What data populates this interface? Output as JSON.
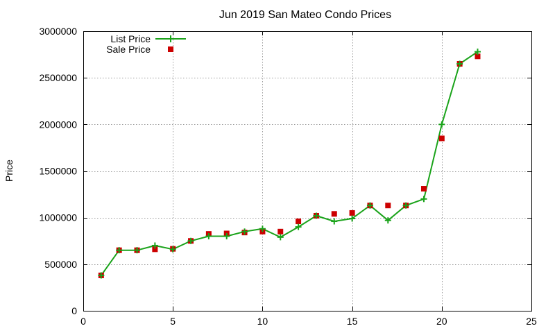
{
  "chart_data": {
    "type": "line",
    "title": "Jun 2019 San Mateo Condo Prices",
    "xlabel": "",
    "ylabel": "Price",
    "xlim": [
      0,
      25
    ],
    "ylim": [
      0,
      3000000
    ],
    "xticks": [
      0,
      5,
      10,
      15,
      20,
      25
    ],
    "yticks": [
      0,
      500000,
      1000000,
      1500000,
      2000000,
      2500000,
      3000000
    ],
    "xtick_labels": [
      "0",
      "5",
      "10",
      "15",
      "20",
      "25"
    ],
    "ytick_labels": [
      "0",
      "500000",
      "1000000",
      "1500000",
      "2000000",
      "2500000",
      "3000000"
    ],
    "grid": true,
    "legend_position": "top-left",
    "series": [
      {
        "name": "List Price",
        "style": "line+cross",
        "color": "#1aa31a",
        "x": [
          1,
          2,
          3,
          4,
          5,
          6,
          7,
          8,
          9,
          10,
          11,
          12,
          13,
          14,
          15,
          16,
          17,
          18,
          19,
          20,
          21,
          22
        ],
        "y": [
          380000,
          650000,
          650000,
          700000,
          660000,
          750000,
          800000,
          800000,
          850000,
          880000,
          790000,
          900000,
          1020000,
          960000,
          990000,
          1130000,
          970000,
          1130000,
          1200000,
          2000000,
          2650000,
          2780000
        ]
      },
      {
        "name": "Sale Price",
        "style": "square",
        "color": "#cc0000",
        "x": [
          1,
          2,
          3,
          4,
          5,
          6,
          7,
          8,
          9,
          10,
          11,
          12,
          13,
          14,
          15,
          16,
          17,
          18,
          19,
          20,
          21,
          22
        ],
        "y": [
          380000,
          650000,
          650000,
          660000,
          665000,
          750000,
          825000,
          830000,
          840000,
          850000,
          850000,
          960000,
          1020000,
          1040000,
          1050000,
          1130000,
          1130000,
          1130000,
          1310000,
          1850000,
          2650000,
          2730000
        ]
      }
    ]
  }
}
